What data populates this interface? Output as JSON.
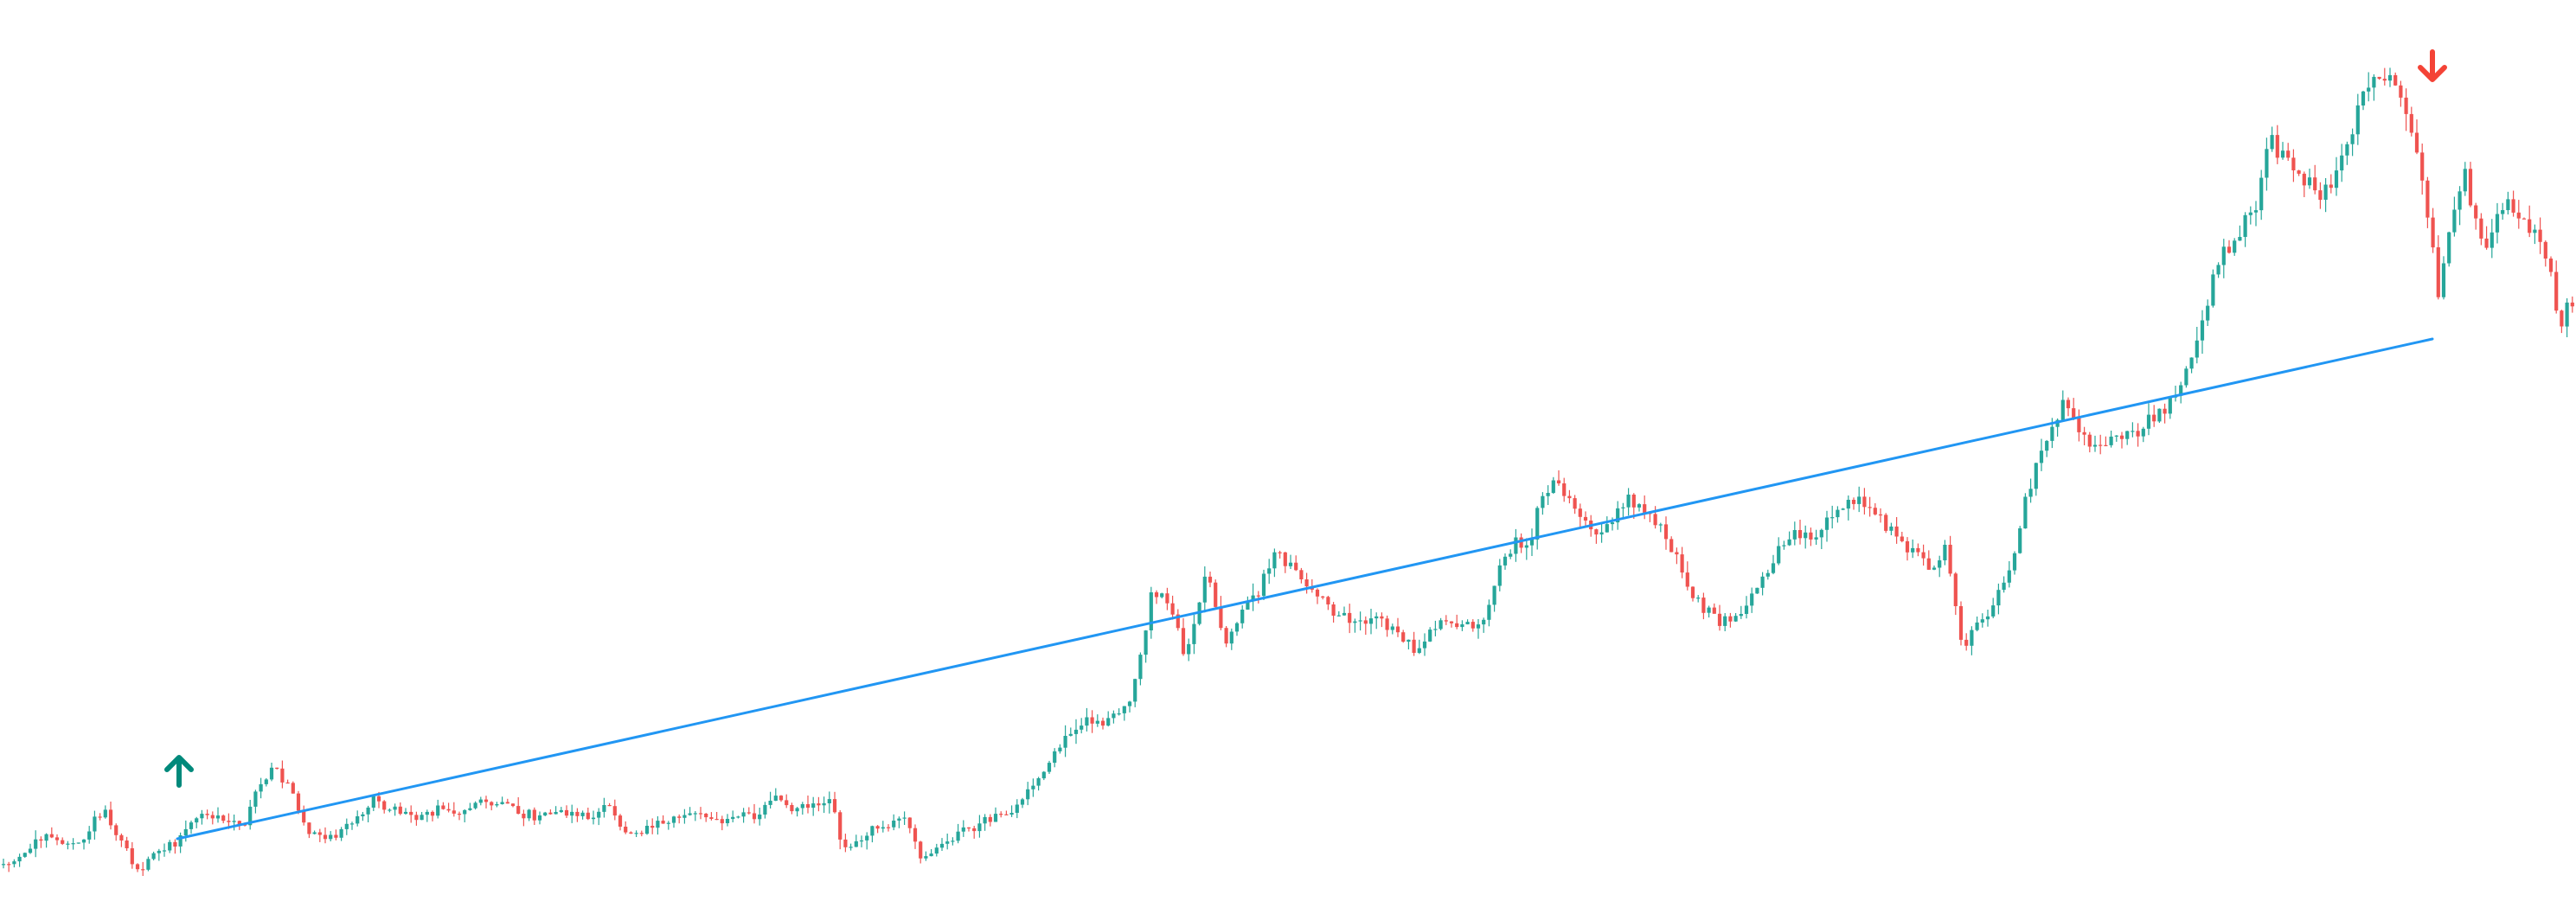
{
  "chart_data": {
    "type": "candlestick",
    "title": "",
    "xlabel": "",
    "ylabel": "",
    "axes_visible": false,
    "grid": false,
    "legend": "none",
    "ylim": [
      0,
      1057
    ],
    "colors": {
      "up": "#26a69a",
      "down": "#ef5350",
      "trendline": "#2196f3",
      "buy_marker": "#00897b",
      "sell_marker": "#f44336",
      "background": "#ffffff"
    },
    "path": [
      [
        0,
        1000
      ],
      [
        25,
        995
      ],
      [
        45,
        965
      ],
      [
        70,
        975
      ],
      [
        95,
        970
      ],
      [
        120,
        935
      ],
      [
        140,
        970
      ],
      [
        160,
        1010
      ],
      [
        185,
        980
      ],
      [
        205,
        975
      ],
      [
        220,
        950
      ],
      [
        240,
        940
      ],
      [
        265,
        950
      ],
      [
        280,
        960
      ],
      [
        295,
        915
      ],
      [
        315,
        890
      ],
      [
        335,
        905
      ],
      [
        355,
        965
      ],
      [
        380,
        970
      ],
      [
        405,
        955
      ],
      [
        430,
        925
      ],
      [
        455,
        935
      ],
      [
        480,
        945
      ],
      [
        510,
        935
      ],
      [
        540,
        940
      ],
      [
        565,
        925
      ],
      [
        590,
        935
      ],
      [
        620,
        945
      ],
      [
        650,
        940
      ],
      [
        680,
        945
      ],
      [
        705,
        935
      ],
      [
        725,
        965
      ],
      [
        750,
        955
      ],
      [
        775,
        945
      ],
      [
        800,
        940
      ],
      [
        825,
        950
      ],
      [
        850,
        945
      ],
      [
        875,
        940
      ],
      [
        895,
        920
      ],
      [
        915,
        935
      ],
      [
        940,
        930
      ],
      [
        960,
        925
      ],
      [
        975,
        980
      ],
      [
        995,
        970
      ],
      [
        1020,
        955
      ],
      [
        1045,
        945
      ],
      [
        1065,
        990
      ],
      [
        1085,
        980
      ],
      [
        1110,
        965
      ],
      [
        1135,
        950
      ],
      [
        1160,
        945
      ],
      [
        1180,
        925
      ],
      [
        1200,
        905
      ],
      [
        1215,
        880
      ],
      [
        1230,
        855
      ],
      [
        1250,
        835
      ],
      [
        1270,
        835
      ],
      [
        1290,
        830
      ],
      [
        1305,
        810
      ],
      [
        1320,
        755
      ],
      [
        1330,
        685
      ],
      [
        1345,
        695
      ],
      [
        1360,
        710
      ],
      [
        1370,
        765
      ],
      [
        1380,
        730
      ],
      [
        1395,
        665
      ],
      [
        1405,
        700
      ],
      [
        1420,
        745
      ],
      [
        1435,
        700
      ],
      [
        1450,
        695
      ],
      [
        1460,
        670
      ],
      [
        1475,
        640
      ],
      [
        1490,
        655
      ],
      [
        1505,
        670
      ],
      [
        1520,
        685
      ],
      [
        1540,
        705
      ],
      [
        1560,
        715
      ],
      [
        1580,
        720
      ],
      [
        1600,
        720
      ],
      [
        1620,
        735
      ],
      [
        1635,
        750
      ],
      [
        1650,
        735
      ],
      [
        1665,
        720
      ],
      [
        1685,
        720
      ],
      [
        1705,
        730
      ],
      [
        1720,
        700
      ],
      [
        1735,
        655
      ],
      [
        1750,
        625
      ],
      [
        1765,
        640
      ],
      [
        1780,
        580
      ],
      [
        1795,
        560
      ],
      [
        1810,
        575
      ],
      [
        1830,
        605
      ],
      [
        1850,
        615
      ],
      [
        1870,
        590
      ],
      [
        1885,
        575
      ],
      [
        1900,
        590
      ],
      [
        1920,
        610
      ],
      [
        1935,
        640
      ],
      [
        1950,
        670
      ],
      [
        1965,
        700
      ],
      [
        1985,
        715
      ],
      [
        2000,
        720
      ],
      [
        2020,
        705
      ],
      [
        2035,
        670
      ],
      [
        2050,
        645
      ],
      [
        2070,
        615
      ],
      [
        2085,
        615
      ],
      [
        2100,
        625
      ],
      [
        2120,
        590
      ],
      [
        2140,
        575
      ],
      [
        2160,
        585
      ],
      [
        2180,
        610
      ],
      [
        2200,
        625
      ],
      [
        2215,
        645
      ],
      [
        2235,
        660
      ],
      [
        2250,
        630
      ],
      [
        2260,
        700
      ],
      [
        2270,
        760
      ],
      [
        2280,
        730
      ],
      [
        2295,
        715
      ],
      [
        2310,
        690
      ],
      [
        2320,
        665
      ],
      [
        2330,
        635
      ],
      [
        2340,
        580
      ],
      [
        2350,
        550
      ],
      [
        2360,
        525
      ],
      [
        2370,
        490
      ],
      [
        2385,
        470
      ],
      [
        2400,
        490
      ],
      [
        2415,
        515
      ],
      [
        2430,
        520
      ],
      [
        2450,
        505
      ],
      [
        2470,
        500
      ],
      [
        2490,
        480
      ],
      [
        2505,
        470
      ],
      [
        2520,
        445
      ],
      [
        2535,
        400
      ],
      [
        2550,
        355
      ],
      [
        2565,
        305
      ],
      [
        2580,
        280
      ],
      [
        2595,
        260
      ],
      [
        2610,
        230
      ],
      [
        2625,
        160
      ],
      [
        2640,
        185
      ],
      [
        2655,
        195
      ],
      [
        2670,
        215
      ],
      [
        2685,
        230
      ],
      [
        2700,
        195
      ],
      [
        2715,
        170
      ],
      [
        2730,
        100
      ],
      [
        2745,
        85
      ],
      [
        2760,
        90
      ],
      [
        2775,
        115
      ],
      [
        2790,
        165
      ],
      [
        2800,
        210
      ],
      [
        2810,
        270
      ],
      [
        2820,
        345
      ],
      [
        2830,
        280
      ],
      [
        2840,
        240
      ],
      [
        2848,
        175
      ],
      [
        2860,
        255
      ],
      [
        2875,
        290
      ],
      [
        2890,
        250
      ],
      [
        2905,
        235
      ],
      [
        2920,
        260
      ],
      [
        2935,
        280
      ],
      [
        2950,
        320
      ],
      [
        2960,
        380
      ],
      [
        2970,
        345
      ],
      [
        2978,
        365
      ]
    ],
    "trendline": {
      "x1": 205,
      "y1": 970,
      "x2": 2812,
      "y2": 392
    },
    "markers": [
      {
        "type": "buy",
        "x": 207,
        "y": 888
      },
      {
        "type": "sell",
        "x": 2812,
        "y": 80
      }
    ]
  }
}
